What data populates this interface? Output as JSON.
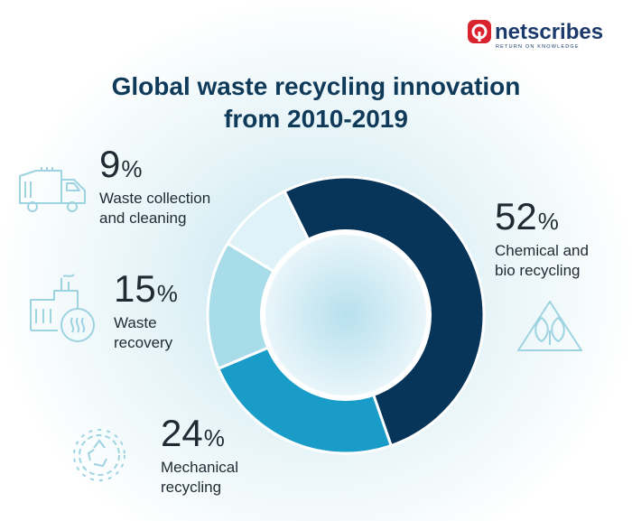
{
  "brand": {
    "name": "netscribes",
    "tagline": "RETURN ON KNOWLEDGE"
  },
  "title_line1": "Global waste recycling innovation",
  "title_line2": "from 2010-2019",
  "colors": {
    "title": "#0f3a5a",
    "brand_red": "#d9232e",
    "brand_blue": "#1b3a6b",
    "slice_chemical": "#07355a",
    "slice_mechanical": "#1a9cc8",
    "slice_recovery": "#a9dce9",
    "slice_collection": "#dff2f7",
    "icon": "#9ed3e2"
  },
  "chart_data": {
    "type": "pie",
    "title": "Global waste recycling innovation from 2010-2019",
    "categories": [
      "Chemical and bio recycling",
      "Mechanical recycling",
      "Waste recovery",
      "Waste collection and cleaning"
    ],
    "values": [
      52,
      24,
      15,
      9
    ],
    "unit": "%",
    "donut": true
  },
  "labels": {
    "chemical": {
      "value": "52",
      "sign": "%",
      "line1": "Chemical and",
      "line2": "bio recycling"
    },
    "mechanical": {
      "value": "24",
      "sign": "%",
      "line1": "Mechanical",
      "line2": "recycling"
    },
    "recovery": {
      "value": "15",
      "sign": "%",
      "line1": "Waste",
      "line2": "recovery"
    },
    "collection": {
      "value": "9",
      "sign": "%",
      "line1": "Waste collection",
      "line2": "and cleaning"
    }
  },
  "icons": {
    "chemical": "recycle-leaves-icon",
    "mechanical": "gear-recycle-icon",
    "recovery": "factory-heat-icon",
    "collection": "garbage-truck-icon"
  }
}
